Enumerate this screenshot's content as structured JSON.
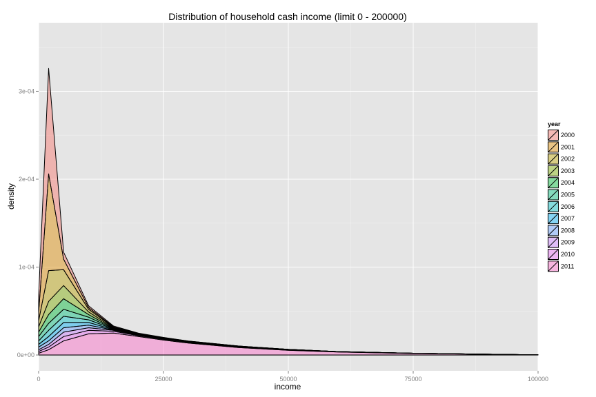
{
  "chart_data": {
    "type": "area",
    "stacked": true,
    "title": "Distribution of household cash income (limit 0 - 200000)",
    "xlabel": "income",
    "ylabel": "density",
    "xlim": [
      0,
      100000
    ],
    "ylim": [
      -1.8e-05,
      0.000378
    ],
    "x_ticks": [
      0,
      25000,
      50000,
      75000,
      100000
    ],
    "x_tick_labels": [
      "0",
      "25000",
      "50000",
      "75000",
      "100000"
    ],
    "y_ticks": [
      0,
      0.0001,
      0.0002,
      0.0003
    ],
    "y_tick_labels": [
      "0e+00",
      "1e-04",
      "2e-04",
      "3e-04"
    ],
    "grid": true,
    "background": "#e5e5e5",
    "legend": {
      "title": "year",
      "position": "right"
    },
    "x": [
      0,
      2000,
      5000,
      10000,
      15000,
      20000,
      25000,
      30000,
      40000,
      50000,
      60000,
      75000,
      100000
    ],
    "series": [
      {
        "name": "2011",
        "color": "#fd6bc8",
        "values": [
          2e-06,
          6e-06,
          1.6e-05,
          2.4e-05,
          2.5e-05,
          2.1e-05,
          1.7e-05,
          1.35e-05,
          8.5e-06,
          5.3e-06,
          3.3e-06,
          1.7e-06,
          2e-07
        ]
      },
      {
        "name": "2010",
        "color": "#e76bf3",
        "values": [
          2e-06,
          3e-06,
          5e-06,
          4e-06,
          2e-06,
          1e-06,
          9e-07,
          8e-07,
          6e-07,
          4e-07,
          3e-07,
          2e-07,
          0
        ]
      },
      {
        "name": "2009",
        "color": "#c77cff",
        "values": [
          2e-06,
          3e-06,
          5e-06,
          3e-06,
          1e-06,
          6e-07,
          5e-07,
          4e-07,
          3e-07,
          2e-07,
          1e-07,
          1e-07,
          0
        ]
      },
      {
        "name": "2008",
        "color": "#619cff",
        "values": [
          3e-06,
          4e-06,
          5e-06,
          3e-06,
          5e-07,
          3e-07,
          3e-07,
          2e-07,
          2e-07,
          1e-07,
          1e-07,
          0,
          0
        ]
      },
      {
        "name": "2007",
        "color": "#00b0f6",
        "values": [
          3e-06,
          5e-06,
          6e-06,
          3e-06,
          5e-07,
          2e-07,
          2e-07,
          2e-07,
          1e-07,
          1e-07,
          1e-07,
          0,
          0
        ]
      },
      {
        "name": "2006",
        "color": "#00bfc4",
        "values": [
          4e-06,
          7e-06,
          7e-06,
          3e-06,
          5e-07,
          2e-07,
          2e-07,
          2e-07,
          1e-07,
          1e-07,
          0,
          0,
          0
        ]
      },
      {
        "name": "2005",
        "color": "#00bf7d",
        "values": [
          5e-06,
          8e-06,
          8e-06,
          3e-06,
          5e-07,
          2e-07,
          2e-07,
          1e-07,
          1e-07,
          1e-07,
          0,
          0,
          0
        ]
      },
      {
        "name": "2004",
        "color": "#00ba38",
        "values": [
          5e-06,
          1e-05,
          1.2e-05,
          3e-06,
          5e-07,
          2e-07,
          2e-07,
          1e-07,
          1e-07,
          1e-07,
          0,
          0,
          0
        ]
      },
      {
        "name": "2003",
        "color": "#7cae00",
        "values": [
          6e-06,
          1.5e-05,
          1.5e-05,
          3e-06,
          5e-07,
          2e-07,
          1e-07,
          1e-07,
          1e-07,
          0,
          0,
          0,
          0
        ]
      },
      {
        "name": "2002",
        "color": "#b79f00",
        "values": [
          7e-06,
          3.5e-05,
          1.8e-05,
          3e-06,
          5e-07,
          2e-07,
          1e-07,
          1e-07,
          1e-07,
          0,
          0,
          0,
          0
        ]
      },
      {
        "name": "2001",
        "color": "#de8c00",
        "values": [
          9e-06,
          0.00011,
          1.2e-05,
          2e-06,
          5e-07,
          2e-07,
          1e-07,
          1e-07,
          0,
          0,
          0,
          0,
          0
        ]
      },
      {
        "name": "2000",
        "color": "#f8766d",
        "values": [
          1.9e-05,
          0.00012,
          8e-06,
          2e-06,
          1e-06,
          5e-07,
          2e-07,
          1e-07,
          0,
          0,
          0,
          0,
          0
        ]
      }
    ],
    "legend_order": [
      "2000",
      "2001",
      "2002",
      "2003",
      "2004",
      "2005",
      "2006",
      "2007",
      "2008",
      "2009",
      "2010",
      "2011"
    ]
  }
}
